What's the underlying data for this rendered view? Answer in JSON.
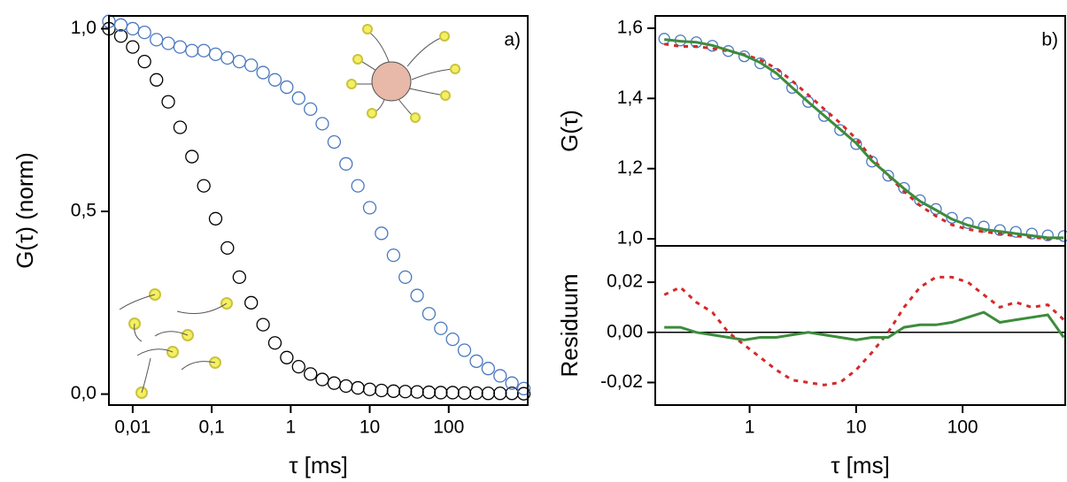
{
  "chart_data": [
    {
      "type": "scatter",
      "label": "a)",
      "xlabel": "τ [ms]",
      "ylabel": "G(τ) (norm)",
      "xscale": "log",
      "x": [
        0.005,
        0.00708,
        0.01,
        0.0141,
        0.02,
        0.0282,
        0.0398,
        0.0562,
        0.0794,
        0.112,
        0.158,
        0.224,
        0.316,
        0.447,
        0.631,
        0.891,
        1.26,
        1.78,
        2.51,
        3.55,
        5.01,
        7.08,
        10,
        14.1,
        20,
        28.2,
        39.8,
        56.2,
        79.4,
        112,
        158,
        224,
        316,
        447,
        631,
        891
      ],
      "series": [
        {
          "color": "#000000",
          "values": [
            1.0,
            0.98,
            0.95,
            0.91,
            0.86,
            0.8,
            0.73,
            0.65,
            0.57,
            0.48,
            0.4,
            0.32,
            0.25,
            0.19,
            0.14,
            0.1,
            0.075,
            0.055,
            0.04,
            0.03,
            0.022,
            0.017,
            0.013,
            0.01,
            0.008,
            0.007,
            0.006,
            0.005,
            0.004,
            0.004,
            0.003,
            0.003,
            0.002,
            0.002,
            0.002,
            0.001
          ]
        },
        {
          "color": "#4a78c0",
          "values": [
            1.02,
            1.01,
            1.0,
            0.99,
            0.97,
            0.96,
            0.95,
            0.94,
            0.94,
            0.93,
            0.92,
            0.91,
            0.9,
            0.88,
            0.86,
            0.84,
            0.81,
            0.78,
            0.74,
            0.69,
            0.63,
            0.57,
            0.51,
            0.44,
            0.38,
            0.32,
            0.27,
            0.22,
            0.18,
            0.15,
            0.12,
            0.09,
            0.07,
            0.05,
            0.03,
            0.015
          ]
        }
      ],
      "xlim": [
        0.005,
        1000
      ],
      "ylim": [
        -0.03,
        1.035
      ],
      "xticks": [
        {
          "value": 0.01,
          "label": "0,01"
        },
        {
          "value": 0.1,
          "label": "0,1"
        },
        1,
        10,
        100
      ],
      "yticks": [
        {
          "value": 0,
          "label": "0,0"
        },
        {
          "value": 0.5,
          "label": "0,5"
        },
        {
          "value": 1,
          "label": "1,0"
        }
      ]
    },
    {
      "type": "line",
      "label": "b)",
      "ylabel": "G(τ)",
      "xscale": "log",
      "x": [
        0.158,
        0.224,
        0.316,
        0.447,
        0.631,
        0.891,
        1.26,
        1.78,
        2.51,
        3.55,
        5.01,
        7.08,
        10,
        14.1,
        20,
        28.2,
        39.8,
        56.2,
        79.4,
        112,
        158,
        224,
        316,
        447,
        631,
        891
      ],
      "series": [
        {
          "color": "#4a78c0",
          "style": "markers",
          "values": [
            1.57,
            1.565,
            1.56,
            1.55,
            1.535,
            1.52,
            1.5,
            1.47,
            1.43,
            1.39,
            1.35,
            1.31,
            1.27,
            1.22,
            1.18,
            1.145,
            1.11,
            1.085,
            1.06,
            1.045,
            1.035,
            1.025,
            1.02,
            1.015,
            1.01,
            1.008
          ]
        },
        {
          "color": "#d42a2a",
          "style": "dashed",
          "values": [
            1.555,
            1.548,
            1.548,
            1.542,
            1.535,
            1.525,
            1.51,
            1.485,
            1.45,
            1.41,
            1.37,
            1.33,
            1.285,
            1.23,
            1.18,
            1.135,
            1.095,
            1.065,
            1.04,
            1.027,
            1.02,
            1.015,
            1.008,
            1.005,
            1.0,
            1.003
          ]
        },
        {
          "color": "#3c8c3c",
          "style": "solid",
          "values": [
            1.568,
            1.563,
            1.56,
            1.551,
            1.537,
            1.523,
            1.502,
            1.472,
            1.431,
            1.39,
            1.351,
            1.312,
            1.273,
            1.222,
            1.182,
            1.143,
            1.107,
            1.082,
            1.056,
            1.039,
            1.027,
            1.021,
            1.015,
            1.009,
            1.003,
            1.003
          ]
        }
      ],
      "xlim": [
        0.13,
        920
      ],
      "ylim": [
        0.98,
        1.635
      ],
      "yticks": [
        {
          "value": 1,
          "label": "1,0"
        },
        {
          "value": 1.2,
          "label": "1,2"
        },
        {
          "value": 1.4,
          "label": "1,4"
        },
        {
          "value": 1.6,
          "label": "1,6"
        }
      ]
    },
    {
      "type": "line",
      "xlabel": "τ [ms]",
      "ylabel": "Residuum",
      "xscale": "log",
      "zero_line": true,
      "x": [
        0.158,
        0.224,
        0.316,
        0.447,
        0.631,
        0.891,
        1.26,
        1.78,
        2.51,
        3.55,
        5.01,
        7.08,
        10,
        14.1,
        20,
        28.2,
        39.8,
        56.2,
        79.4,
        112,
        158,
        224,
        316,
        447,
        631,
        891
      ],
      "series": [
        {
          "color": "#d42a2a",
          "style": "dashed",
          "values": [
            0.015,
            0.018,
            0.012,
            0.008,
            0.0,
            -0.005,
            -0.01,
            -0.015,
            -0.019,
            -0.02,
            -0.021,
            -0.02,
            -0.015,
            -0.008,
            0.0,
            0.01,
            0.018,
            0.022,
            0.022,
            0.02,
            0.015,
            0.01,
            0.012,
            0.01,
            0.011,
            0.005
          ]
        },
        {
          "color": "#3c8c3c",
          "style": "solid",
          "values": [
            0.002,
            0.002,
            0.0,
            -0.001,
            -0.002,
            -0.003,
            -0.002,
            -0.002,
            -0.001,
            0.0,
            -0.001,
            -0.002,
            -0.003,
            -0.002,
            -0.002,
            0.002,
            0.003,
            0.003,
            0.004,
            0.006,
            0.008,
            0.004,
            0.005,
            0.006,
            0.007,
            -0.002
          ]
        }
      ],
      "xlim": [
        0.13,
        920
      ],
      "ylim": [
        -0.029,
        0.0345
      ],
      "xticks": [
        1,
        10,
        100
      ],
      "yticks": [
        {
          "value": -0.02,
          "label": "-0,02"
        },
        {
          "value": 0,
          "label": "0,00"
        },
        {
          "value": 0.02,
          "label": "0,02"
        }
      ]
    }
  ]
}
